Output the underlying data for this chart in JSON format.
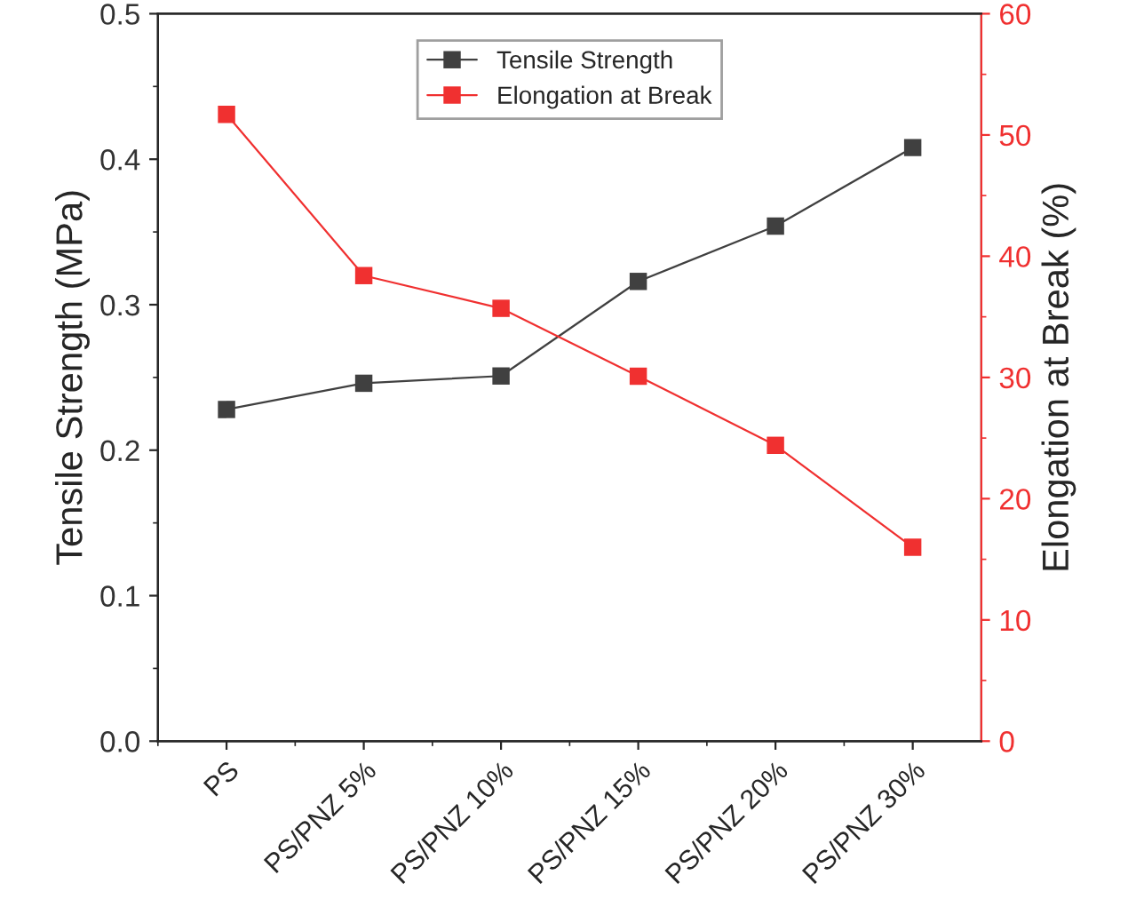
{
  "chart_data": {
    "type": "line",
    "xlabel": null,
    "ylabel": "Tensile Strength (MPa)",
    "y2label": "Elongation at Break (%)",
    "categories": [
      "PS",
      "PS/PNZ 5%",
      "PS/PNZ 10%",
      "PS/PNZ 15%",
      "PS/PNZ 20%",
      "PS/PNZ 30%"
    ],
    "series": [
      {
        "name": "Tensile Strength",
        "color": "#404040",
        "values": [
          0.228,
          0.246,
          0.251,
          0.316,
          0.354,
          0.408
        ]
      },
      {
        "name": "Elongation at Break",
        "color": "#f03030",
        "axis": "y2",
        "values": [
          51.7,
          38.4,
          35.7,
          30.1,
          24.4,
          16.0
        ]
      }
    ],
    "ylim": [
      0,
      0.5
    ],
    "yticks": [
      {
        "value": 0,
        "label": "0.0"
      },
      0.1,
      0.2,
      0.3,
      0.4,
      0.5
    ],
    "y2lim": [
      0,
      60
    ],
    "y2ticks": [
      0,
      10,
      20,
      30,
      40,
      50,
      60
    ],
    "marker": "square",
    "line_style": "solid",
    "grid": false,
    "legend": "top"
  }
}
